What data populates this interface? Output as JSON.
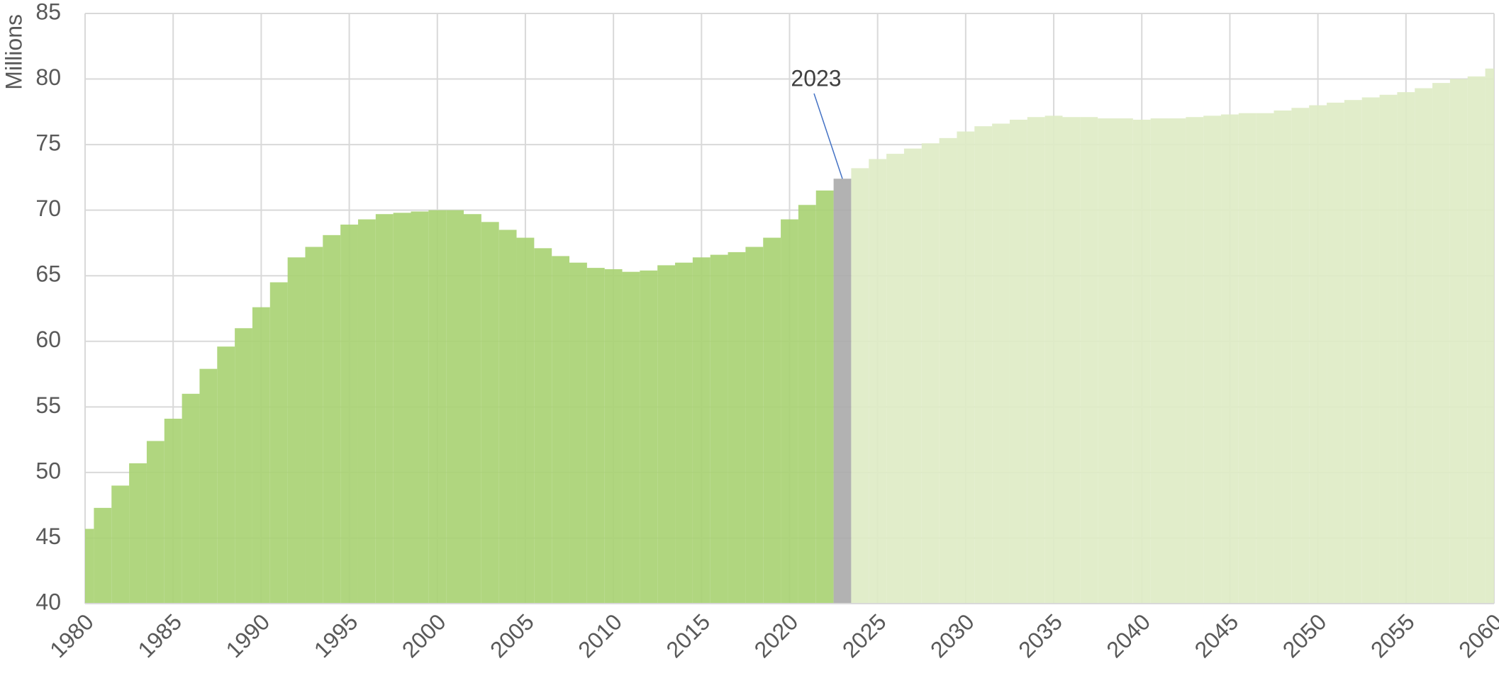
{
  "chart_data": {
    "type": "bar",
    "y_label": "Millions",
    "annotations": [
      {
        "text": "2023"
      }
    ],
    "x": [
      1980,
      1981,
      1982,
      1983,
      1984,
      1985,
      1986,
      1987,
      1988,
      1989,
      1990,
      1991,
      1992,
      1993,
      1994,
      1995,
      1996,
      1997,
      1998,
      1999,
      2000,
      2001,
      2002,
      2003,
      2004,
      2005,
      2006,
      2007,
      2008,
      2009,
      2010,
      2011,
      2012,
      2013,
      2014,
      2015,
      2016,
      2017,
      2018,
      2019,
      2020,
      2021,
      2022,
      2023,
      2024,
      2025,
      2026,
      2027,
      2028,
      2029,
      2030,
      2031,
      2032,
      2033,
      2034,
      2035,
      2036,
      2037,
      2038,
      2039,
      2040,
      2041,
      2042,
      2043,
      2044,
      2045,
      2046,
      2047,
      2048,
      2049,
      2050,
      2051,
      2052,
      2053,
      2054,
      2055,
      2056,
      2057,
      2058,
      2059,
      2060
    ],
    "series": [
      {
        "color": "#a9d274",
        "values": [
          45.7,
          47.3,
          49.0,
          50.7,
          52.4,
          54.1,
          56.0,
          57.9,
          59.6,
          61.0,
          62.6,
          64.5,
          66.4,
          67.2,
          68.1,
          68.9,
          69.3,
          69.7,
          69.8,
          69.9,
          70.0,
          70.0,
          69.7,
          69.1,
          68.5,
          67.9,
          67.1,
          66.5,
          66.0,
          65.6,
          65.5,
          65.3,
          65.4,
          65.8,
          66.0,
          66.4,
          66.6,
          66.8,
          67.2,
          67.9,
          69.3,
          70.4,
          71.5,
          null,
          null,
          null,
          null,
          null,
          null,
          null,
          null,
          null,
          null,
          null,
          null,
          null,
          null,
          null,
          null,
          null,
          null,
          null,
          null,
          null,
          null,
          null,
          null,
          null,
          null,
          null,
          null,
          null,
          null,
          null,
          null,
          null,
          null,
          null,
          null,
          null,
          null
        ]
      },
      {
        "color": "#ababab",
        "values": [
          null,
          null,
          null,
          null,
          null,
          null,
          null,
          null,
          null,
          null,
          null,
          null,
          null,
          null,
          null,
          null,
          null,
          null,
          null,
          null,
          null,
          null,
          null,
          null,
          null,
          null,
          null,
          null,
          null,
          null,
          null,
          null,
          null,
          null,
          null,
          null,
          null,
          null,
          null,
          null,
          null,
          null,
          null,
          72.4,
          null,
          null,
          null,
          null,
          null,
          null,
          null,
          null,
          null,
          null,
          null,
          null,
          null,
          null,
          null,
          null,
          null,
          null,
          null,
          null,
          null,
          null,
          null,
          null,
          null,
          null,
          null,
          null,
          null,
          null,
          null,
          null,
          null,
          null,
          null,
          null,
          null
        ]
      },
      {
        "color": "#deecc5",
        "values": [
          null,
          null,
          null,
          null,
          null,
          null,
          null,
          null,
          null,
          null,
          null,
          null,
          null,
          null,
          null,
          null,
          null,
          null,
          null,
          null,
          null,
          null,
          null,
          null,
          null,
          null,
          null,
          null,
          null,
          null,
          null,
          null,
          null,
          null,
          null,
          null,
          null,
          null,
          null,
          null,
          null,
          null,
          null,
          null,
          73.2,
          73.9,
          74.3,
          74.7,
          75.1,
          75.5,
          76.0,
          76.4,
          76.6,
          76.9,
          77.1,
          77.2,
          77.1,
          77.1,
          77.0,
          77.0,
          76.9,
          77.0,
          77.0,
          77.1,
          77.2,
          77.3,
          77.4,
          77.4,
          77.6,
          77.8,
          78.0,
          78.2,
          78.4,
          78.6,
          78.8,
          79.0,
          79.3,
          79.7,
          80.0,
          80.2,
          80.8
        ]
      }
    ],
    "xlim": [
      1980,
      2060
    ],
    "xticks": [
      1980,
      1985,
      1990,
      1995,
      2000,
      2005,
      2010,
      2015,
      2020,
      2025,
      2030,
      2035,
      2040,
      2045,
      2050,
      2055,
      2060
    ],
    "ylim": [
      40,
      85
    ],
    "yticks": [
      40,
      45,
      50,
      55,
      60,
      65,
      70,
      75,
      80,
      85
    ],
    "grid": true
  }
}
